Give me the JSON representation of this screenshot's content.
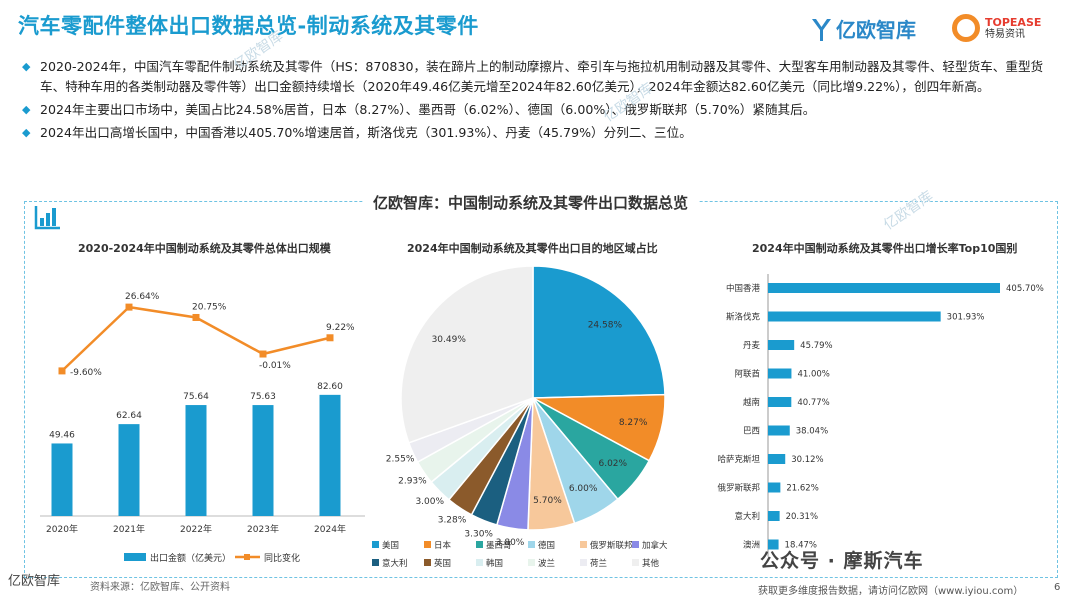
{
  "header": {
    "title": "汽车零配件整体出口数据总览-制动系统及其零件",
    "logo_yiou": "亿欧智库",
    "logo_topease_en": "TOPEASE",
    "logo_topease_cn": "特易资讯"
  },
  "bullets": [
    "2020-2024年，中国汽车零配件制动系统及其零件（HS：870830，装在蹄片上的制动摩擦片、牵引车与拖拉机用制动器及其零件、大型客车用制动器及其零件、轻型货车、重型货车、特种车用的各类制动器及零件等）出口金额持续增长（2020年49.46亿美元增至2024年82.60亿美元），2024年金额达82.60亿美元（同比增9.22%），创四年新高。",
    "2024年主要出口市场中，美国占比24.58%居首，日本（8.27%）、墨西哥（6.02%）、德国（6.00%）、俄罗斯联邦（5.70%）紧随其后。",
    "2024年出口高增长国中，中国香港以405.70%增速居首，斯洛伐克（301.93%）、丹麦（45.79%）分列二、三位。"
  ],
  "panel": {
    "title": "亿欧智库：中国制动系统及其零件出口数据总览"
  },
  "chart_titles": {
    "c1": "2020-2024年中国制动系统及其零件总体出口规模",
    "c2": "2024年中国制动系统及其零件出口目的地区域占比",
    "c3": "2024年中国制动系统及其零件出口增长率Top10国别"
  },
  "footer": {
    "source": "资料来源：亿欧智库、公开资料",
    "right": "获取更多维度报告数据，请访问亿欧网（www.iyiou.com）",
    "page": "6",
    "wechat": "公众号 · 摩斯汽车",
    "wm_logo": "亿欧智库"
  },
  "colors": {
    "accent": "#1a9bcf",
    "bar": "#1a9bcf",
    "line": "#f28c28"
  },
  "chart_data": [
    {
      "type": "bar",
      "categories": [
        "2020年",
        "2021年",
        "2022年",
        "2023年",
        "2024年"
      ],
      "series": [
        {
          "name": "出口金额（亿美元）",
          "values": [
            49.46,
            62.64,
            75.64,
            75.63,
            82.6
          ]
        },
        {
          "name": "同比变化",
          "values": [
            -9.6,
            26.64,
            20.75,
            -0.01,
            9.22
          ],
          "unit": "%"
        }
      ],
      "value_labels": [
        "49.46",
        "62.64",
        "75.64",
        "75.63",
        "82.60"
      ],
      "line_labels": [
        "-9.60%",
        "26.64%",
        "20.75%",
        "-0.01%",
        "9.22%"
      ]
    },
    {
      "type": "pie",
      "labels": [
        "美国",
        "日本",
        "墨西哥",
        "德国",
        "俄罗斯联邦",
        "加拿大",
        "意大利",
        "英国",
        "韩国",
        "波兰",
        "荷兰",
        "其他"
      ],
      "values": [
        24.58,
        8.27,
        6.02,
        6.0,
        5.7,
        3.8,
        3.3,
        3.28,
        3.0,
        2.93,
        2.55,
        30.49
      ],
      "value_labels": [
        "24.58%",
        "8.27%",
        "6.02%",
        "6.00%",
        "5.70%",
        "3.80%",
        "3.30%",
        "3.28%",
        "3.00%",
        "2.93%",
        "2.55%",
        "30.49%"
      ],
      "colors": [
        "#1a9bcf",
        "#f28c28",
        "#2aa6a0",
        "#9fd6ea",
        "#f7c89b",
        "#8a8ae6",
        "#1b5f80",
        "#8b5a2b",
        "#d9eef0",
        "#e8f4ec",
        "#ececf2",
        "#efefef"
      ]
    },
    {
      "type": "bar",
      "orientation": "horizontal",
      "categories": [
        "中国香港",
        "斯洛伐克",
        "丹麦",
        "阿联酋",
        "越南",
        "巴西",
        "哈萨克斯坦",
        "俄罗斯联邦",
        "意大利",
        "澳洲"
      ],
      "values": [
        405.7,
        301.93,
        45.79,
        41.0,
        40.77,
        38.04,
        30.12,
        21.62,
        20.31,
        18.47
      ],
      "value_labels": [
        "405.70%",
        "301.93%",
        "45.79%",
        "41.00%",
        "40.77%",
        "38.04%",
        "30.12%",
        "21.62%",
        "20.31%",
        "18.47%"
      ],
      "unit": "%"
    }
  ]
}
